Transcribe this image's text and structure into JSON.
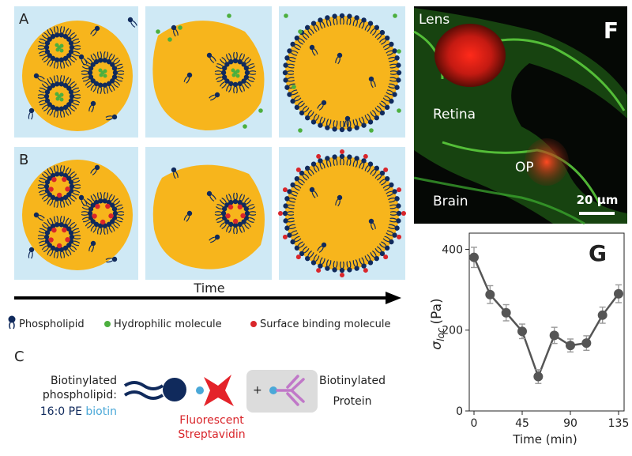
{
  "panels": {
    "A": {
      "letter": "A"
    },
    "B": {
      "letter": "B"
    },
    "C": {
      "letter": "C"
    },
    "F": {
      "letter": "F",
      "labels": {
        "lens": "Lens",
        "retina": "Retina",
        "op": "OP",
        "brain": "Brain"
      },
      "scalebar": "20 μm"
    },
    "G": {
      "letter": "G"
    }
  },
  "timeline": {
    "label": "Time"
  },
  "legend": {
    "phospholipid": "Phospholipid",
    "hydrophilic": "Hydrophilic molecule",
    "surface": "Surface binding molecule"
  },
  "panelC": {
    "left_line1": "Biotinylated",
    "left_line2": "phospholipid:",
    "left_line3_a": "16:0 PE ",
    "left_line3_b": "biotin",
    "streptavidin_line1": "Fluorescent",
    "streptavidin_line2": "Streptavidin",
    "plus": "+",
    "protein_line1": "Biotinylated",
    "protein_line2": "Protein"
  },
  "colors": {
    "panel_bg": "#cfe9f5",
    "droplet": "#f7b51c",
    "lipid": "#102a5c",
    "hydrophilic": "#4caf3e",
    "surface": "#d9262b",
    "biotin": "#4aa8d8",
    "antibody": "#c078c8",
    "plot_line": "#555555"
  },
  "chart_data": {
    "type": "line",
    "x": [
      0,
      15,
      30,
      45,
      60,
      75,
      90,
      105,
      120,
      135
    ],
    "y": [
      380,
      288,
      243,
      197,
      85,
      187,
      162,
      168,
      237,
      290
    ],
    "err": [
      25,
      22,
      20,
      18,
      17,
      20,
      16,
      18,
      20,
      22
    ],
    "xticks": [
      "0",
      "45",
      "90",
      "135"
    ],
    "yticks": [
      "0",
      "200",
      "400"
    ],
    "xlabel": "Time (min)",
    "ylabel": "σ",
    "ylabel_sub": "loc",
    "ylabel_unit": "(Pa)",
    "xlim": [
      -8,
      140
    ],
    "ylim": [
      0,
      440
    ]
  }
}
